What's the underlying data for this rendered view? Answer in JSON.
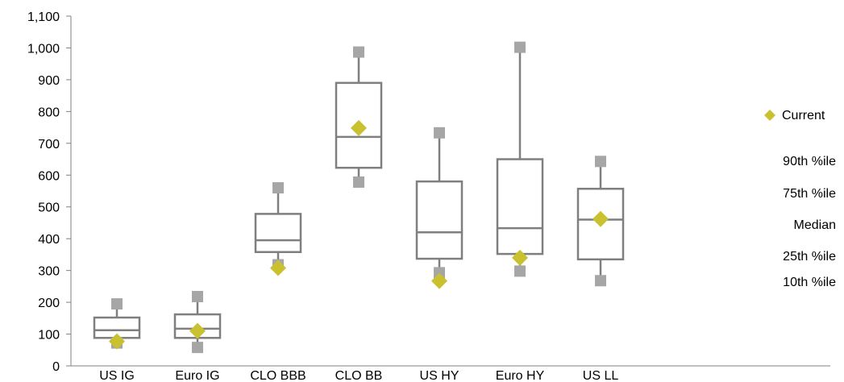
{
  "chart_data": {
    "type": "box",
    "categories": [
      "US IG",
      "Euro IG",
      "CLO BBB",
      "CLO BB",
      "US HY",
      "Euro HY",
      "US LL"
    ],
    "ylim": [
      0,
      1100
    ],
    "yticks": [
      0,
      100,
      200,
      300,
      400,
      500,
      600,
      700,
      800,
      900,
      1000,
      1100
    ],
    "ytick_labels": [
      "0",
      "100",
      "200",
      "300",
      "400",
      "500",
      "600",
      "700",
      "800",
      "900",
      "1,000",
      "1,100"
    ],
    "series": [
      {
        "name": "90th %ile",
        "values": [
          195,
          218,
          560,
          987,
          733,
          1002,
          643
        ]
      },
      {
        "name": "75th %ile",
        "values": [
          152,
          162,
          478,
          890,
          580,
          650,
          557
        ]
      },
      {
        "name": "Median",
        "values": [
          112,
          117,
          395,
          720,
          420,
          433,
          460
        ]
      },
      {
        "name": "25th %ile",
        "values": [
          88,
          88,
          358,
          623,
          337,
          352,
          335
        ]
      },
      {
        "name": "10th %ile",
        "values": [
          72,
          58,
          318,
          578,
          293,
          298,
          268
        ]
      },
      {
        "name": "Current",
        "values": [
          77,
          110,
          308,
          748,
          267,
          340,
          462
        ]
      }
    ],
    "legend": {
      "current": "Current",
      "p90": "90th %ile",
      "p75": "75th %ile",
      "median": "Median",
      "p25": "25th %ile",
      "p10": "10th %ile"
    },
    "colors": {
      "box": "#7f7f7f",
      "marker": "#a6a6a6",
      "current": "#c9c12f",
      "axis": "#808080"
    }
  }
}
